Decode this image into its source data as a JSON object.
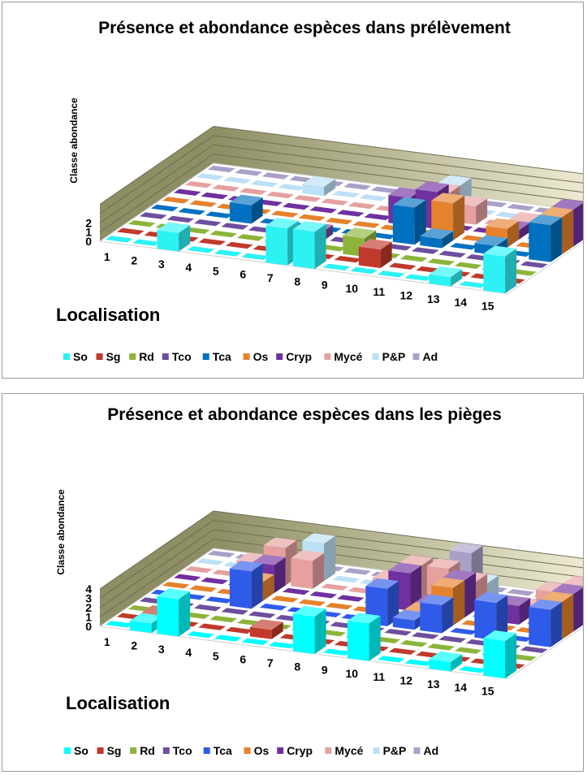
{
  "chart_data": [
    {
      "type": "bar",
      "title": "Présence et abondance espèces dans prélèvement",
      "xlabel": "Localisation",
      "ylabel": "Classe abondance",
      "categories": [
        "1",
        "2",
        "3",
        "4",
        "5",
        "6",
        "7",
        "8",
        "9",
        "10",
        "11",
        "12",
        "13",
        "14",
        "15"
      ],
      "y_tick_labels": [
        "0",
        "1",
        "2"
      ],
      "ylim": [
        0,
        4
      ],
      "series": [
        {
          "name": "So",
          "color": "#2CF2F4",
          "values": [
            0,
            0,
            2,
            0,
            0,
            0,
            4,
            4,
            0,
            0,
            0,
            0,
            1,
            0,
            4
          ]
        },
        {
          "name": "Sg",
          "color": "#C0392B",
          "values": [
            0,
            0,
            0,
            0,
            0,
            0,
            0,
            0,
            0,
            2,
            0,
            0,
            0,
            0,
            0
          ]
        },
        {
          "name": "Rd",
          "color": "#8DB43A",
          "values": [
            0,
            0,
            0,
            0,
            0,
            0,
            0,
            0,
            2,
            0,
            0,
            0,
            0,
            0,
            0
          ]
        },
        {
          "name": "Tco",
          "color": "#6E4E9E",
          "values": [
            0,
            0,
            0,
            0,
            0,
            0,
            1,
            0,
            0,
            0,
            0,
            0,
            0,
            0,
            0
          ]
        },
        {
          "name": "Tca",
          "color": "#0070C0",
          "values": [
            0,
            0,
            0,
            2,
            0,
            0,
            0,
            0,
            0,
            4,
            1,
            0,
            1,
            0,
            4
          ]
        },
        {
          "name": "Os",
          "color": "#E5822C",
          "values": [
            0,
            0,
            0,
            0,
            0,
            0,
            0,
            0,
            0,
            0,
            4,
            0,
            2,
            0,
            4
          ]
        },
        {
          "name": "Cryp",
          "color": "#7030A0",
          "values": [
            0,
            0,
            0,
            0,
            0,
            0,
            0,
            0,
            3,
            4,
            0,
            0,
            1,
            0,
            4
          ]
        },
        {
          "name": "Mycé",
          "color": "#E6A0A0",
          "values": [
            0,
            0,
            0,
            0,
            0,
            0,
            0,
            0,
            0,
            3,
            2,
            0,
            1,
            0,
            0
          ]
        },
        {
          "name": "P&P",
          "color": "#BCE0F5",
          "values": [
            0,
            0,
            0,
            0,
            1,
            0,
            0,
            0,
            0,
            3,
            0,
            0,
            0,
            0,
            0
          ]
        },
        {
          "name": "Ad",
          "color": "#A9A0C8",
          "values": [
            0,
            0,
            0,
            0,
            0,
            0,
            0,
            0,
            0,
            0,
            0,
            0,
            0,
            0,
            0
          ]
        }
      ],
      "grid": true,
      "legend_position": "bottom"
    },
    {
      "type": "bar",
      "title": "Présence et abondance espèces dans les pièges",
      "xlabel": "Localisation",
      "ylabel": "Classe abondance",
      "categories": [
        "1",
        "2",
        "3",
        "4",
        "5",
        "6",
        "7",
        "8",
        "9",
        "10",
        "11",
        "12",
        "13",
        "14",
        "15"
      ],
      "y_tick_labels": [
        "0",
        "1",
        "2",
        "3",
        "4"
      ],
      "ylim": [
        0,
        4
      ],
      "series": [
        {
          "name": "So",
          "color": "#00FFFF",
          "values": [
            0,
            1,
            4,
            0,
            0,
            0,
            0,
            4,
            0,
            4,
            0,
            0,
            1,
            0,
            4
          ]
        },
        {
          "name": "Sg",
          "color": "#C0392B",
          "values": [
            0,
            1,
            0,
            0,
            0,
            1,
            0,
            0,
            0,
            0,
            0,
            0,
            0,
            0,
            0
          ]
        },
        {
          "name": "Rd",
          "color": "#8DB43A",
          "values": [
            0,
            0,
            0,
            0,
            0,
            0,
            0,
            0,
            0,
            0,
            0,
            0,
            0,
            0,
            0
          ]
        },
        {
          "name": "Tco",
          "color": "#6E4E9E",
          "values": [
            0,
            0,
            0,
            0,
            0,
            0,
            0,
            0,
            0,
            0,
            0,
            0,
            0,
            0,
            0
          ]
        },
        {
          "name": "Tca",
          "color": "#2F5BEA",
          "values": [
            0,
            0,
            0,
            4,
            0,
            0,
            0,
            0,
            4,
            1,
            3,
            0,
            4,
            0,
            4
          ]
        },
        {
          "name": "Os",
          "color": "#E5822C",
          "values": [
            0,
            0,
            0,
            2,
            0,
            0,
            0,
            0,
            0,
            1,
            4,
            0,
            0,
            0,
            4
          ]
        },
        {
          "name": "Cryp",
          "color": "#7030A0",
          "values": [
            0,
            0,
            0,
            3,
            0,
            0,
            0,
            0,
            4,
            1,
            4,
            0,
            2,
            0,
            4
          ]
        },
        {
          "name": "Mycé",
          "color": "#E6A0A0",
          "values": [
            0,
            0,
            2,
            4,
            3,
            0,
            0,
            2,
            4,
            4,
            3,
            0,
            1,
            3,
            4
          ]
        },
        {
          "name": "P&P",
          "color": "#BCE0F5",
          "values": [
            0,
            0,
            0,
            0,
            4,
            0,
            0,
            0,
            0,
            0,
            2,
            0,
            0,
            0,
            0
          ]
        },
        {
          "name": "Ad",
          "color": "#A9A0C8",
          "values": [
            0,
            0,
            0,
            0,
            0,
            0,
            0,
            0,
            0,
            4,
            0,
            0,
            0,
            0,
            0
          ]
        }
      ],
      "grid": true,
      "legend_position": "bottom"
    }
  ]
}
